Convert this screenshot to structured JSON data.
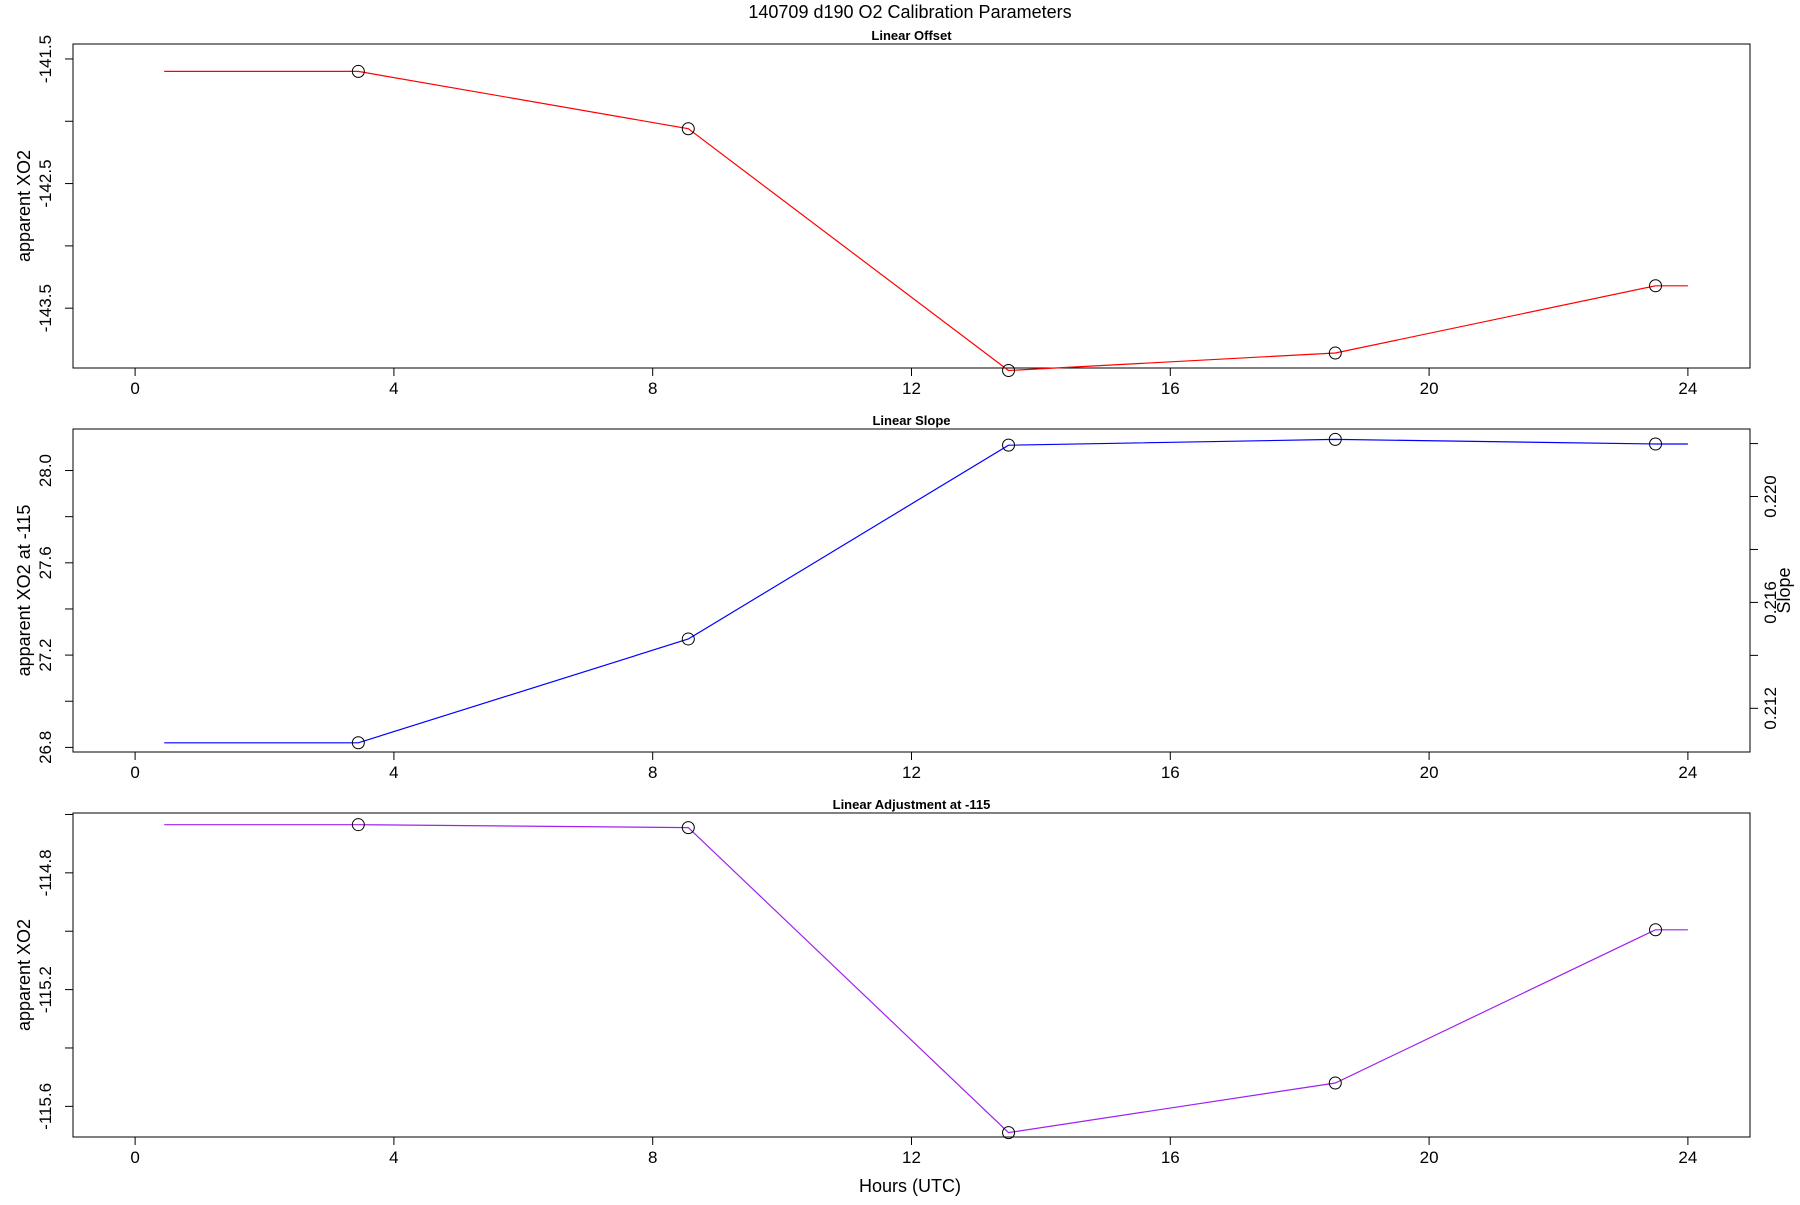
{
  "figure": {
    "title": "140709   d190   O2 Calibration Parameters",
    "xlabel": "Hours (UTC)"
  },
  "chart_data": [
    {
      "type": "line",
      "title": "Linear Offset",
      "xlabel": "",
      "ylabel": "apparent XO2",
      "xlim": [
        0,
        24
      ],
      "x_ticks": [
        0,
        4,
        8,
        12,
        16,
        20,
        24
      ],
      "x_tick_labels": [
        "0",
        "4",
        "8",
        "12",
        "16",
        "20",
        "24"
      ],
      "ylim": [
        -143.98,
        -141.38
      ],
      "y_ticks": [
        -141.5,
        -142.0,
        -142.5,
        -143.0,
        -143.5
      ],
      "y_tick_labels": [
        "-141.5",
        "",
        "-142.5",
        "",
        "-143.5"
      ],
      "series": [
        {
          "color": "#ff0000",
          "x": [
            0.45,
            3.45,
            8.55,
            13.5,
            18.55,
            23.5,
            24.0
          ],
          "y": [
            -141.6,
            -141.6,
            -142.06,
            -144.0,
            -143.86,
            -143.32,
            -143.32
          ],
          "markers": [
            1,
            2,
            3,
            4,
            5
          ]
        }
      ]
    },
    {
      "type": "line",
      "title": "Linear Slope",
      "xlabel": "",
      "ylabel": "apparent XO2 at -115",
      "xlim": [
        0,
        24
      ],
      "x_ticks": [
        0,
        4,
        8,
        12,
        16,
        20,
        24
      ],
      "x_tick_labels": [
        "0",
        "4",
        "8",
        "12",
        "16",
        "20",
        "24"
      ],
      "ylim": [
        26.78,
        28.18
      ],
      "y_ticks": [
        26.8,
        27.0,
        27.2,
        27.4,
        27.6,
        27.8,
        28.0
      ],
      "y_tick_labels": [
        "26.8",
        "",
        "27.2",
        "",
        "27.6",
        "",
        "28.0"
      ],
      "y2label": "Slope",
      "y2lim": [
        0.21035,
        0.22255
      ],
      "y2_ticks": [
        0.212,
        0.214,
        0.216,
        0.218,
        0.22,
        0.222
      ],
      "y2_tick_labels": [
        "0.212",
        "",
        "0.216",
        "",
        "0.220",
        ""
      ],
      "series": [
        {
          "color": "#0000ff",
          "x": [
            0.45,
            3.45,
            8.55,
            13.5,
            18.55,
            23.5,
            24.0
          ],
          "y": [
            26.82,
            26.82,
            27.27,
            28.11,
            28.135,
            28.115,
            28.115
          ],
          "markers": [
            1,
            2,
            3,
            4,
            5
          ]
        }
      ]
    },
    {
      "type": "line",
      "title": "Linear Adjustment at -115",
      "xlabel": "Hours (UTC)",
      "ylabel": "apparent XO2",
      "xlim": [
        0,
        24
      ],
      "x_ticks": [
        0,
        4,
        8,
        12,
        16,
        20,
        24
      ],
      "x_tick_labels": [
        "0",
        "4",
        "8",
        "12",
        "16",
        "20",
        "24"
      ],
      "ylim": [
        -115.705,
        -114.595
      ],
      "y_ticks": [
        -114.6,
        -114.8,
        -115.0,
        -115.2,
        -115.4,
        -115.6
      ],
      "y_tick_labels": [
        "",
        "-114.8",
        "",
        "-115.2",
        "",
        "-115.6"
      ],
      "series": [
        {
          "color": "#a020f0",
          "x": [
            0.45,
            3.45,
            8.55,
            13.5,
            18.55,
            23.5,
            24.0
          ],
          "y": [
            -114.635,
            -114.635,
            -114.645,
            -115.69,
            -115.52,
            -114.995,
            -114.995
          ],
          "markers": [
            1,
            2,
            3,
            4,
            5
          ]
        }
      ]
    }
  ]
}
